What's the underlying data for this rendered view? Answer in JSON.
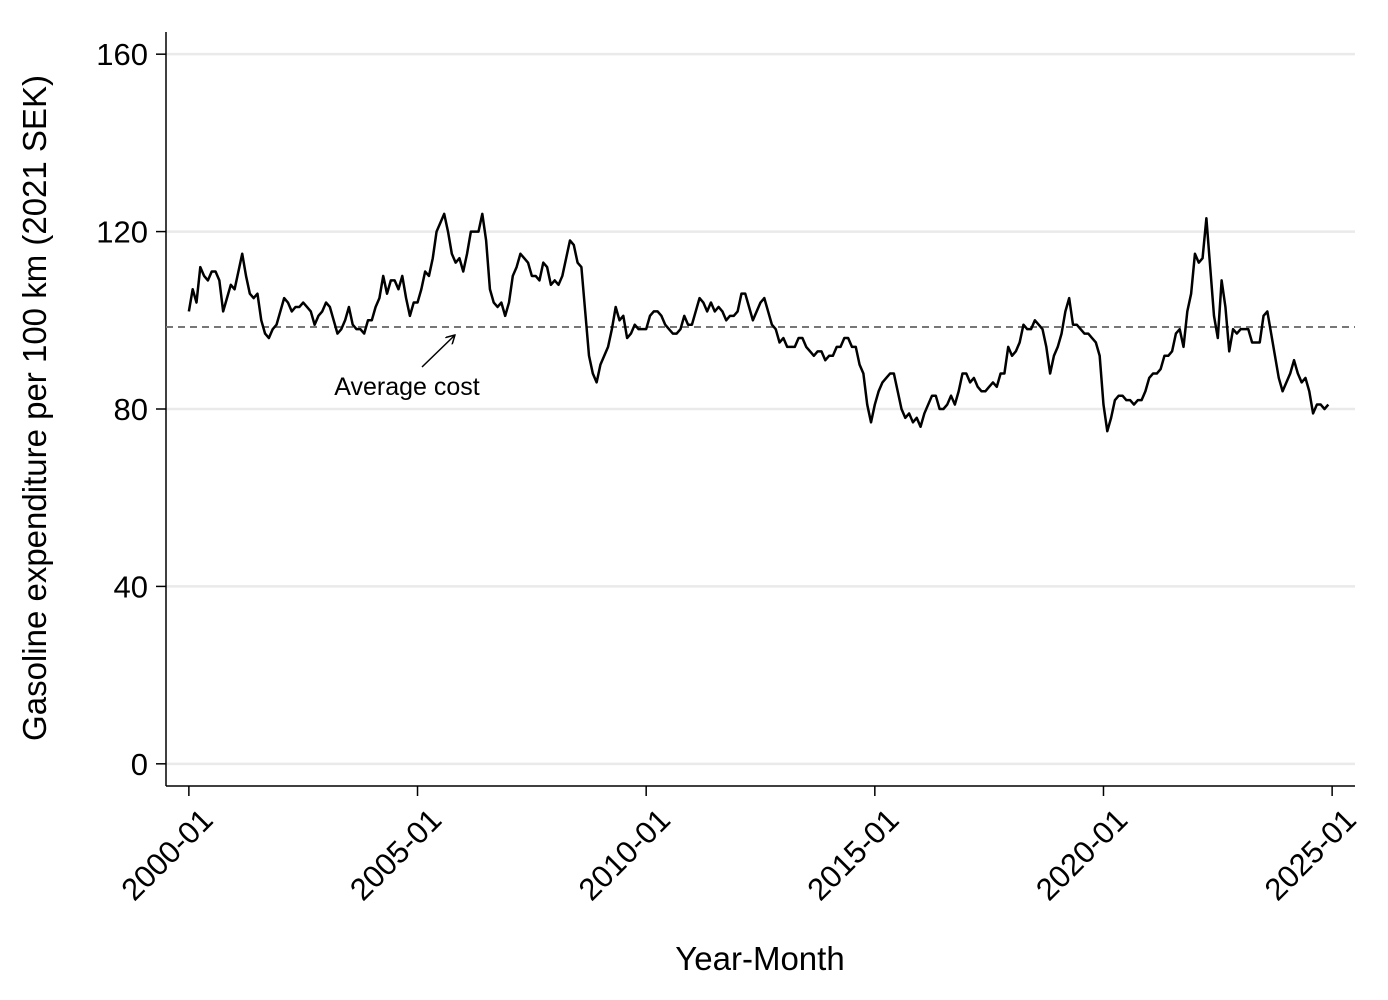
{
  "chart_data": {
    "type": "line",
    "x_label": "Year-Month",
    "y_label": "Gasoline expenditure per 100 km (2021 SEK)",
    "x": [
      "2000-01",
      "2000-02",
      "2000-03",
      "2000-04",
      "2000-05",
      "2000-06",
      "2000-07",
      "2000-08",
      "2000-09",
      "2000-10",
      "2000-11",
      "2000-12",
      "2001-01",
      "2001-02",
      "2001-03",
      "2001-04",
      "2001-05",
      "2001-06",
      "2001-07",
      "2001-08",
      "2001-09",
      "2001-10",
      "2001-11",
      "2001-12",
      "2002-01",
      "2002-02",
      "2002-03",
      "2002-04",
      "2002-05",
      "2002-06",
      "2002-07",
      "2002-08",
      "2002-09",
      "2002-10",
      "2002-11",
      "2002-12",
      "2003-01",
      "2003-02",
      "2003-03",
      "2003-04",
      "2003-05",
      "2003-06",
      "2003-07",
      "2003-08",
      "2003-09",
      "2003-10",
      "2003-11",
      "2003-12",
      "2004-01",
      "2004-02",
      "2004-03",
      "2004-04",
      "2004-05",
      "2004-06",
      "2004-07",
      "2004-08",
      "2004-09",
      "2004-10",
      "2004-11",
      "2004-12",
      "2005-01",
      "2005-02",
      "2005-03",
      "2005-04",
      "2005-05",
      "2005-06",
      "2005-07",
      "2005-08",
      "2005-09",
      "2005-10",
      "2005-11",
      "2005-12",
      "2006-01",
      "2006-02",
      "2006-03",
      "2006-04",
      "2006-05",
      "2006-06",
      "2006-07",
      "2006-08",
      "2006-09",
      "2006-10",
      "2006-11",
      "2006-12",
      "2007-01",
      "2007-02",
      "2007-03",
      "2007-04",
      "2007-05",
      "2007-06",
      "2007-07",
      "2007-08",
      "2007-09",
      "2007-10",
      "2007-11",
      "2007-12",
      "2008-01",
      "2008-02",
      "2008-03",
      "2008-04",
      "2008-05",
      "2008-06",
      "2008-07",
      "2008-08",
      "2008-09",
      "2008-10",
      "2008-11",
      "2008-12",
      "2009-01",
      "2009-02",
      "2009-03",
      "2009-04",
      "2009-05",
      "2009-06",
      "2009-07",
      "2009-08",
      "2009-09",
      "2009-10",
      "2009-11",
      "2009-12",
      "2010-01",
      "2010-02",
      "2010-03",
      "2010-04",
      "2010-05",
      "2010-06",
      "2010-07",
      "2010-08",
      "2010-09",
      "2010-10",
      "2010-11",
      "2010-12",
      "2011-01",
      "2011-02",
      "2011-03",
      "2011-04",
      "2011-05",
      "2011-06",
      "2011-07",
      "2011-08",
      "2011-09",
      "2011-10",
      "2011-11",
      "2011-12",
      "2012-01",
      "2012-02",
      "2012-03",
      "2012-04",
      "2012-05",
      "2012-06",
      "2012-07",
      "2012-08",
      "2012-09",
      "2012-10",
      "2012-11",
      "2012-12",
      "2013-01",
      "2013-02",
      "2013-03",
      "2013-04",
      "2013-05",
      "2013-06",
      "2013-07",
      "2013-08",
      "2013-09",
      "2013-10",
      "2013-11",
      "2013-12",
      "2014-01",
      "2014-02",
      "2014-03",
      "2014-04",
      "2014-05",
      "2014-06",
      "2014-07",
      "2014-08",
      "2014-09",
      "2014-10",
      "2014-11",
      "2014-12",
      "2015-01",
      "2015-02",
      "2015-03",
      "2015-04",
      "2015-05",
      "2015-06",
      "2015-07",
      "2015-08",
      "2015-09",
      "2015-10",
      "2015-11",
      "2015-12",
      "2016-01",
      "2016-02",
      "2016-03",
      "2016-04",
      "2016-05",
      "2016-06",
      "2016-07",
      "2016-08",
      "2016-09",
      "2016-10",
      "2016-11",
      "2016-12",
      "2017-01",
      "2017-02",
      "2017-03",
      "2017-04",
      "2017-05",
      "2017-06",
      "2017-07",
      "2017-08",
      "2017-09",
      "2017-10",
      "2017-11",
      "2017-12",
      "2018-01",
      "2018-02",
      "2018-03",
      "2018-04",
      "2018-05",
      "2018-06",
      "2018-07",
      "2018-08",
      "2018-09",
      "2018-10",
      "2018-11",
      "2018-12",
      "2019-01",
      "2019-02",
      "2019-03",
      "2019-04",
      "2019-05",
      "2019-06",
      "2019-07",
      "2019-08",
      "2019-09",
      "2019-10",
      "2019-11",
      "2019-12",
      "2020-01",
      "2020-02",
      "2020-03",
      "2020-04",
      "2020-05",
      "2020-06",
      "2020-07",
      "2020-08",
      "2020-09",
      "2020-10",
      "2020-11",
      "2020-12",
      "2021-01",
      "2021-02",
      "2021-03",
      "2021-04",
      "2021-05",
      "2021-06",
      "2021-07",
      "2021-08",
      "2021-09",
      "2021-10",
      "2021-11",
      "2021-12",
      "2022-01",
      "2022-02",
      "2022-03",
      "2022-04",
      "2022-05",
      "2022-06",
      "2022-07",
      "2022-08",
      "2022-09",
      "2022-10",
      "2022-11",
      "2022-12",
      "2023-01",
      "2023-02",
      "2023-03",
      "2023-04",
      "2023-05",
      "2023-06",
      "2023-07",
      "2023-08",
      "2023-09",
      "2023-10",
      "2023-11",
      "2023-12",
      "2024-01",
      "2024-02",
      "2024-03",
      "2024-04",
      "2024-05",
      "2024-06",
      "2024-07",
      "2024-08",
      "2024-09",
      "2024-10",
      "2024-11",
      "2024-12"
    ],
    "values": [
      102,
      107,
      104,
      112,
      110,
      109,
      111,
      111,
      109,
      102,
      105,
      108,
      107,
      111,
      115,
      110,
      106,
      105,
      106,
      100,
      97,
      96,
      98,
      99,
      102,
      105,
      104,
      102,
      103,
      103,
      104,
      103,
      102,
      99,
      101,
      102,
      104,
      103,
      100,
      97,
      98,
      100,
      103,
      99,
      98,
      98,
      97,
      100,
      100,
      103,
      105,
      110,
      106,
      109,
      109,
      107,
      110,
      105,
      101,
      104,
      104,
      107,
      111,
      110,
      114,
      120,
      122,
      124,
      120,
      115,
      113,
      114,
      111,
      115,
      120,
      120,
      120,
      124,
      118,
      107,
      104,
      103,
      104,
      101,
      104,
      110,
      112,
      115,
      114,
      113,
      110,
      110,
      109,
      113,
      112,
      108,
      109,
      108,
      110,
      114,
      118,
      117,
      113,
      112,
      102,
      92,
      88,
      86,
      90,
      92,
      94,
      98,
      103,
      100,
      101,
      96,
      97,
      99,
      98,
      98,
      98,
      101,
      102,
      102,
      101,
      99,
      98,
      97,
      97,
      98,
      101,
      99,
      99,
      102,
      105,
      104,
      102,
      104,
      102,
      103,
      102,
      100,
      101,
      101,
      102,
      106,
      106,
      103,
      100,
      102,
      104,
      105,
      102,
      99,
      98,
      95,
      96,
      94,
      94,
      94,
      96,
      96,
      94,
      93,
      92,
      93,
      93,
      91,
      92,
      92,
      94,
      94,
      96,
      96,
      94,
      94,
      90,
      88,
      81,
      77,
      81,
      84,
      86,
      87,
      88,
      88,
      84,
      80,
      78,
      79,
      77,
      78,
      76,
      79,
      81,
      83,
      83,
      80,
      80,
      81,
      83,
      81,
      84,
      88,
      88,
      86,
      87,
      85,
      84,
      84,
      85,
      86,
      85,
      88,
      88,
      94,
      92,
      93,
      95,
      99,
      98,
      98,
      100,
      99,
      98,
      94,
      88,
      92,
      94,
      97,
      102,
      105,
      99,
      99,
      98,
      97,
      97,
      96,
      95,
      92,
      81,
      75,
      78,
      82,
      83,
      83,
      82,
      82,
      81,
      82,
      82,
      84,
      87,
      88,
      88,
      89,
      92,
      92,
      93,
      97,
      98,
      94,
      102,
      106,
      115,
      113,
      114,
      123,
      112,
      101,
      96,
      109,
      103,
      93,
      98,
      97,
      98,
      98,
      98,
      95,
      95,
      95,
      101,
      102,
      97,
      92,
      87,
      84,
      86,
      88,
      91,
      88,
      86,
      87,
      84,
      79,
      81,
      81,
      80,
      81
    ],
    "color": "#000000",
    "average": 98.5,
    "average_label": "Average cost",
    "xlim": [
      "1999-07",
      "2025-07"
    ],
    "xticks": [
      "2000-01",
      "2005-01",
      "2010-01",
      "2015-01",
      "2020-01",
      "2025-01"
    ],
    "ylim": [
      -5,
      165
    ],
    "yticks": [
      0,
      40,
      80,
      120,
      160
    ],
    "grid": true
  }
}
